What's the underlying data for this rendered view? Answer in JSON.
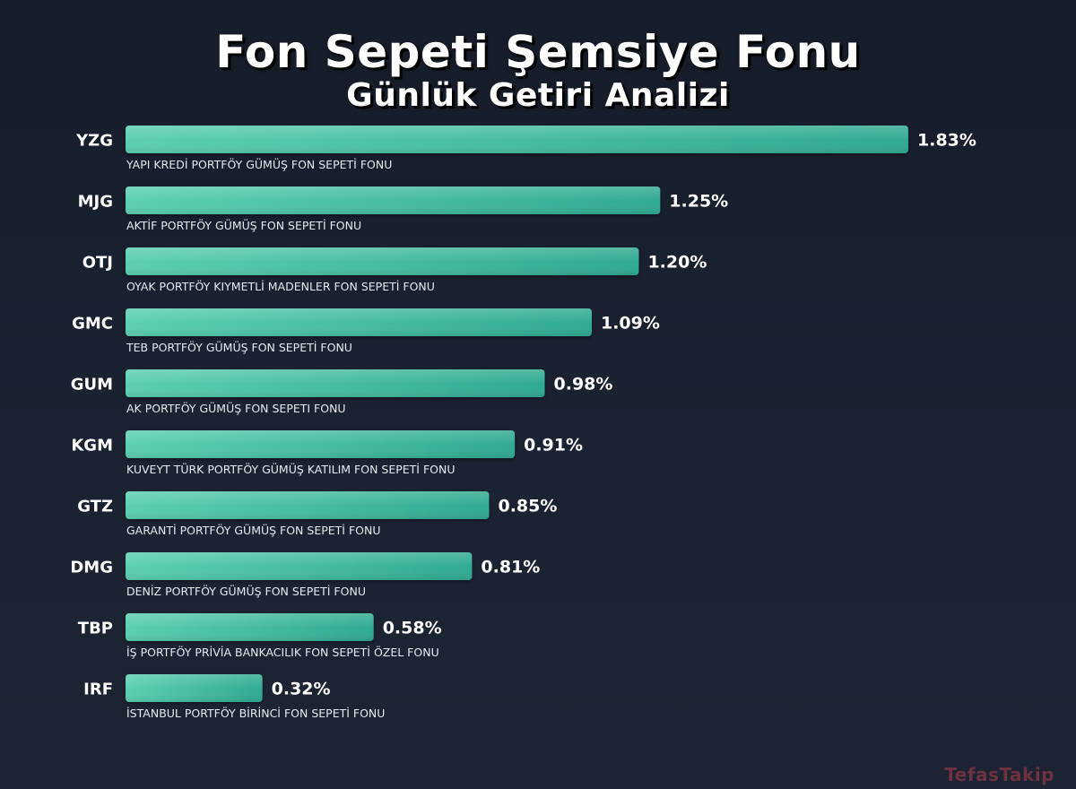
{
  "title": "Fon Sepeti Şemsiye Fonu",
  "subtitle": "Günlük Getiri Analizi",
  "watermark": "TefasTakip",
  "colors": {
    "background": "#1a2130",
    "bar_light": "#5ccfb0",
    "bar_dark": "#2faa90",
    "text": "#ffffff"
  },
  "chart_data": {
    "type": "bar",
    "orientation": "horizontal",
    "title": "Fon Sepeti Şemsiye Fonu",
    "subtitle": "Günlük Getiri Analizi",
    "xlim": [
      0,
      1.83
    ],
    "grid": false,
    "legend": "none",
    "value_suffix": "%",
    "categories": [
      "YZG",
      "MJG",
      "OTJ",
      "GMC",
      "GUM",
      "KGM",
      "GTZ",
      "DMG",
      "TBP",
      "IRF"
    ],
    "names": [
      "YAPI KREDİ PORTFÖY GÜMÜŞ FON SEPETİ FONU",
      "AKTİF PORTFÖY GÜMÜŞ FON SEPETİ FONU",
      "OYAK PORTFÖY KIYMETLİ MADENLER FON SEPETİ FONU",
      "TEB PORTFÖY GÜMÜŞ FON SEPETİ FONU",
      "AK PORTFÖY GÜMÜŞ FON SEPETI FONU",
      "KUVEYT TÜRK PORTFÖY GÜMÜŞ KATILIM FON SEPETİ FONU",
      "GARANTİ PORTFÖY GÜMÜŞ FON SEPETİ FONU",
      "DENİZ PORTFÖY GÜMÜŞ FON SEPETİ FONU",
      "İŞ PORTFÖY PRİVİA BANKACILIK FON SEPETİ ÖZEL FONU",
      "İSTANBUL PORTFÖY BİRİNCİ FON SEPETİ FONU"
    ],
    "values": [
      1.83,
      1.25,
      1.2,
      1.09,
      0.98,
      0.91,
      0.85,
      0.81,
      0.58,
      0.32
    ],
    "labels": [
      "1.83%",
      "1.25%",
      "1.20%",
      "1.09%",
      "0.98%",
      "0.91%",
      "0.85%",
      "0.81%",
      "0.58%",
      "0.32%"
    ]
  }
}
